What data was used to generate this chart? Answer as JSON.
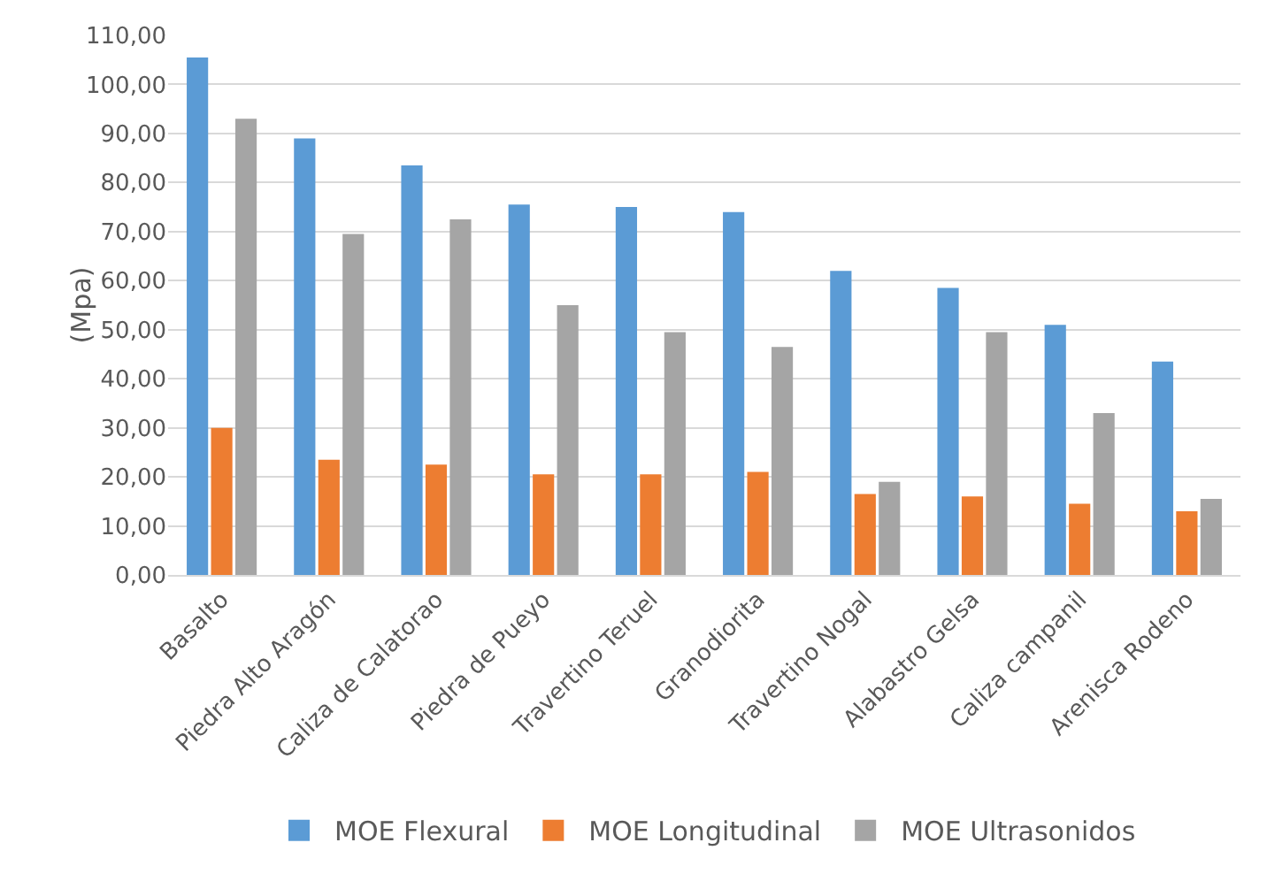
{
  "chart_data": {
    "type": "bar",
    "ylabel": "(Mpa)",
    "categories": [
      "Basalto",
      "Piedra Alto Aragón",
      "Caliza de Calatorao",
      "Piedra de Pueyo",
      "Travertino Teruel",
      "Granodiorita",
      "Travertino Nogal",
      "Alabastro Gelsa",
      "Caliza campanil",
      "Arenisca Rodeno"
    ],
    "series": [
      {
        "name": "MOE Flexural",
        "color": "#5b9bd5",
        "values": [
          105.5,
          89,
          83.5,
          75.5,
          75,
          74,
          62,
          58.5,
          51,
          43.5
        ]
      },
      {
        "name": "MOE Longitudinal",
        "color": "#ed7d31",
        "values": [
          30,
          23.5,
          22.5,
          20.5,
          20.5,
          21,
          16.5,
          16,
          14.5,
          13
        ]
      },
      {
        "name": "MOE Ultrasonidos",
        "color": "#a5a5a5",
        "values": [
          93,
          69.5,
          72.5,
          55,
          49.5,
          46.5,
          19,
          49.5,
          33,
          15.5
        ]
      }
    ],
    "ylim": [
      0,
      110
    ],
    "yticks": [
      {
        "value": 0,
        "label": "0,00"
      },
      {
        "value": 10,
        "label": "10,00"
      },
      {
        "value": 20,
        "label": "20,00"
      },
      {
        "value": 30,
        "label": "30,00"
      },
      {
        "value": 40,
        "label": "40,00"
      },
      {
        "value": 50,
        "label": "50,00"
      },
      {
        "value": 60,
        "label": "60,00"
      },
      {
        "value": 70,
        "label": "70,00"
      },
      {
        "value": 80,
        "label": "80,00"
      },
      {
        "value": 90,
        "label": "90,00"
      },
      {
        "value": 100,
        "label": "100,00"
      },
      {
        "value": 110,
        "label": "110,00"
      }
    ],
    "grid": "y",
    "legend": "bottom"
  }
}
